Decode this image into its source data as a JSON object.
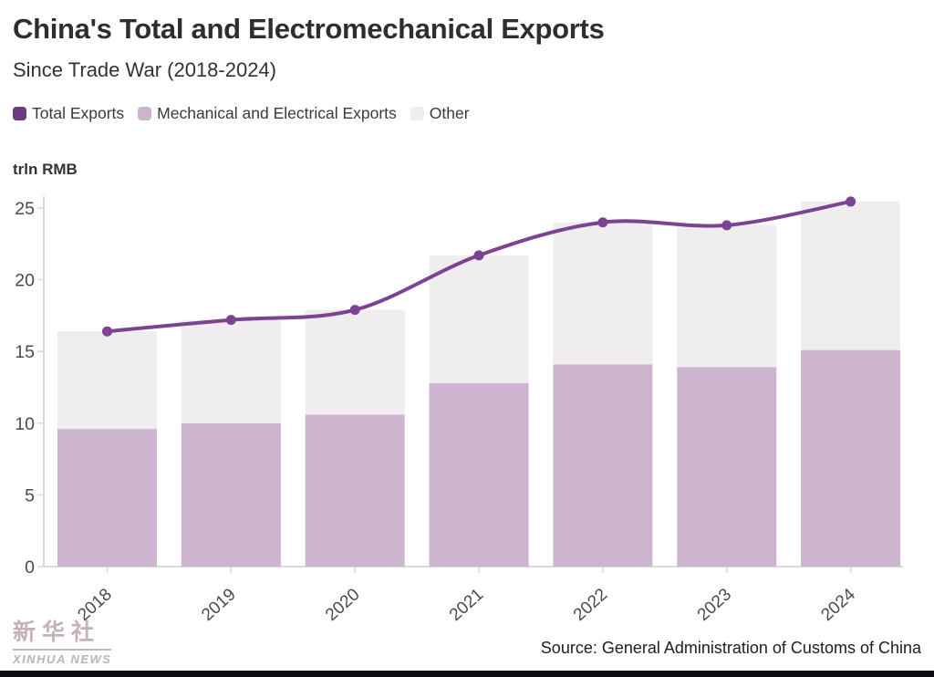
{
  "header": {
    "title": "China's Total and Electromechanical Exports",
    "subtitle": "Since Trade War (2018-2024)"
  },
  "legend": {
    "items": [
      {
        "label": "Total Exports",
        "color": "#6c3a7e"
      },
      {
        "label": "Mechanical and Electrical Exports",
        "color": "#ceb5cf"
      },
      {
        "label": "Other",
        "color": "#efedee"
      }
    ]
  },
  "chart_data": {
    "type": "bar",
    "subtype": "stacked-bars-with-line-overlay",
    "title": "China's Total and Electromechanical Exports",
    "subtitle": "Since Trade War (2018-2024)",
    "unit_label": "trln RMB",
    "xlabel": "",
    "ylabel": "trln RMB",
    "categories": [
      "2018",
      "2019",
      "2020",
      "2021",
      "2022",
      "2023",
      "2024"
    ],
    "series": [
      {
        "name": "Total Exports",
        "type": "line",
        "color": "#7b4392",
        "values": [
          16.4,
          17.2,
          17.9,
          21.7,
          24.0,
          23.8,
          25.45
        ]
      },
      {
        "name": "Mechanical and Electrical Exports",
        "type": "bar-stack",
        "color": "#ceb5cf",
        "values": [
          9.6,
          10.0,
          10.6,
          12.8,
          14.1,
          13.9,
          15.1
        ]
      },
      {
        "name": "Other",
        "type": "bar-stack",
        "color": "#efedee",
        "values": [
          6.8,
          7.2,
          7.3,
          8.9,
          9.9,
          9.9,
          10.35
        ]
      }
    ],
    "yticks": [
      0,
      5,
      10,
      15,
      20,
      25
    ],
    "ylim": [
      0,
      26
    ],
    "grid": false,
    "legend_position": "top-left",
    "axis_color": "#d9d9d9",
    "tick_label_color": "#4a4a4a"
  },
  "footer": {
    "logo_cn": "新华社",
    "logo_en": "XINHUA NEWS",
    "source": "Source: General Administration of Customs of China"
  }
}
